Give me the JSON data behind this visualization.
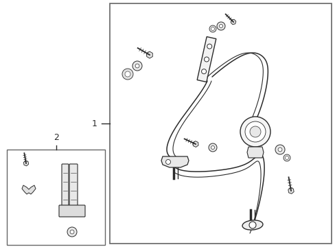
{
  "bg_color": "#ffffff",
  "line_color": "#2a2a2a",
  "border_color": "#666666",
  "fig_width": 4.89,
  "fig_height": 3.6,
  "dpi": 100,
  "label_1": "1",
  "label_2": "2"
}
